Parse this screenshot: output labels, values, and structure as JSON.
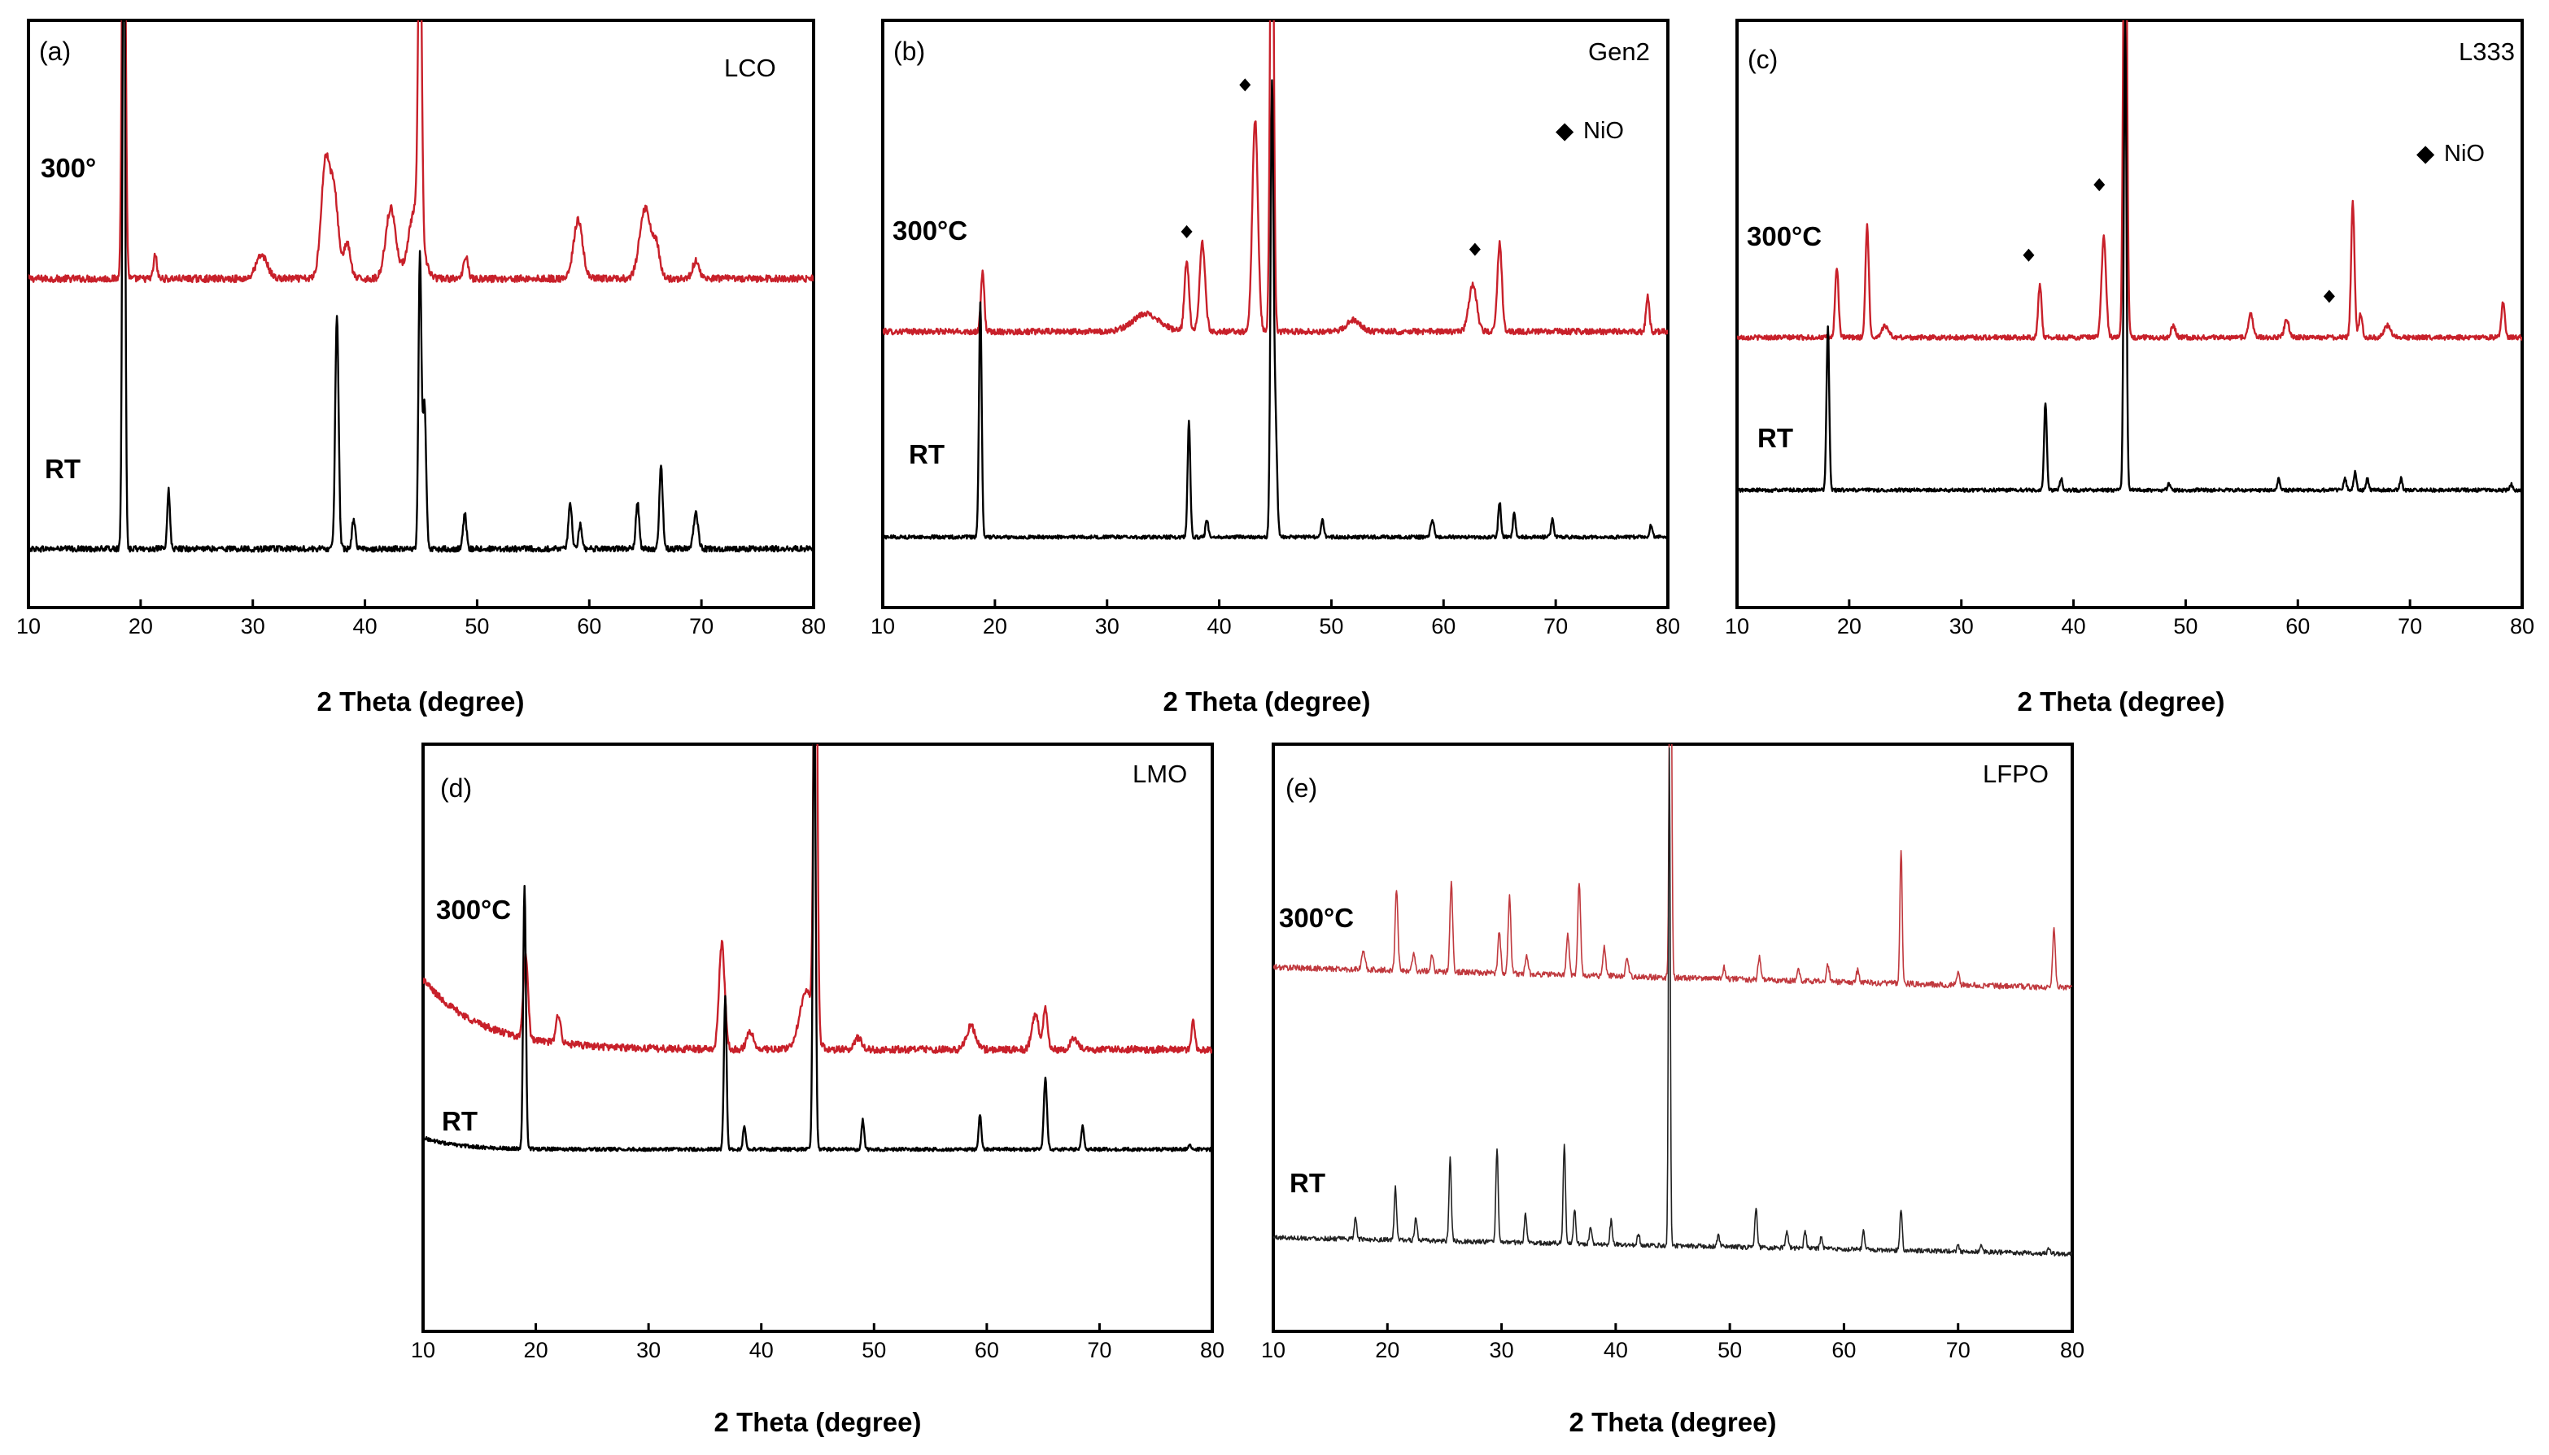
{
  "figure": {
    "description_text": ""
  },
  "colors": {
    "heated": "#c8202a",
    "room_temp": "#000000",
    "heated_lfpo": "#c0393e",
    "room_temp_lfpo": "#222222"
  },
  "chart_data": [
    {
      "panel_label": "(a)",
      "sample": "LCO",
      "type": "line",
      "xlabel": "2 Theta (degree)",
      "xlim": [
        10,
        80
      ],
      "xticks": [
        10,
        20,
        30,
        40,
        50,
        60,
        70,
        80
      ],
      "legend": null,
      "series": [
        {
          "name": "300°",
          "label": "300°",
          "color": "#c8202a",
          "baseline": 0.56,
          "noise": 0.006,
          "slope": 0.0,
          "peaks": [
            [
              18.5,
              0.9,
              0.15
            ],
            [
              21.3,
              0.04,
              0.15
            ],
            [
              30.8,
              0.04,
              0.5
            ],
            [
              36.5,
              0.2,
              0.4
            ],
            [
              37.3,
              0.13,
              0.35
            ],
            [
              38.4,
              0.06,
              0.3
            ],
            [
              42.3,
              0.12,
              0.45
            ],
            [
              44.9,
              0.6,
              0.15
            ],
            [
              44.5,
              0.12,
              0.6
            ],
            [
              49.0,
              0.04,
              0.2
            ],
            [
              59.0,
              0.1,
              0.4
            ],
            [
              65.0,
              0.12,
              0.5
            ],
            [
              66.0,
              0.05,
              0.3
            ],
            [
              69.5,
              0.03,
              0.3
            ]
          ]
        },
        {
          "name": "RT",
          "label": "RT",
          "color": "#000000",
          "baseline": 0.1,
          "noise": 0.005,
          "slope": 0.0,
          "peaks": [
            [
              18.5,
              1.25,
              0.12
            ],
            [
              22.5,
              0.1,
              0.12
            ],
            [
              37.5,
              0.4,
              0.15
            ],
            [
              39.0,
              0.05,
              0.15
            ],
            [
              44.9,
              0.5,
              0.13
            ],
            [
              45.3,
              0.25,
              0.15
            ],
            [
              48.9,
              0.06,
              0.15
            ],
            [
              58.3,
              0.08,
              0.15
            ],
            [
              59.2,
              0.04,
              0.15
            ],
            [
              64.3,
              0.08,
              0.15
            ],
            [
              66.4,
              0.14,
              0.15
            ],
            [
              69.5,
              0.06,
              0.2
            ]
          ]
        }
      ]
    },
    {
      "panel_label": "(b)",
      "sample": "Gen2",
      "type": "line",
      "xlabel": "2 Theta (degree)",
      "xlim": [
        10,
        80
      ],
      "xticks": [
        10,
        20,
        30,
        40,
        50,
        60,
        70,
        80
      ],
      "legend": {
        "symbol": "◆",
        "text": "NiO",
        "position": "top-right"
      },
      "markers": [
        {
          "x": 37.1,
          "y": 0.64
        },
        {
          "x": 42.3,
          "y": 0.89
        },
        {
          "x": 62.8,
          "y": 0.61
        }
      ],
      "series": [
        {
          "name": "300°C",
          "label": "300°C",
          "color": "#c8202a",
          "baseline": 0.47,
          "noise": 0.005,
          "slope": 0.0,
          "peaks": [
            [
              18.9,
              0.1,
              0.15
            ],
            [
              33.5,
              0.03,
              1.2
            ],
            [
              37.1,
              0.12,
              0.2
            ],
            [
              38.5,
              0.15,
              0.25
            ],
            [
              43.2,
              0.36,
              0.25
            ],
            [
              44.7,
              1.0,
              0.15
            ],
            [
              52.0,
              0.02,
              0.6
            ],
            [
              62.6,
              0.08,
              0.35
            ],
            [
              65.0,
              0.15,
              0.2
            ],
            [
              78.2,
              0.06,
              0.15
            ]
          ]
        },
        {
          "name": "RT",
          "label": "RT",
          "color": "#000000",
          "baseline": 0.12,
          "noise": 0.003,
          "slope": 0.0,
          "peaks": [
            [
              18.7,
              0.4,
              0.12
            ],
            [
              37.3,
              0.2,
              0.12
            ],
            [
              38.9,
              0.03,
              0.12
            ],
            [
              44.7,
              0.75,
              0.13
            ],
            [
              45.0,
              0.2,
              0.15
            ],
            [
              49.2,
              0.03,
              0.12
            ],
            [
              59.0,
              0.03,
              0.15
            ],
            [
              65.0,
              0.06,
              0.12
            ],
            [
              66.3,
              0.04,
              0.12
            ],
            [
              69.7,
              0.03,
              0.12
            ],
            [
              78.5,
              0.02,
              0.12
            ]
          ]
        }
      ]
    },
    {
      "panel_label": "(c)",
      "sample": "L333",
      "type": "line",
      "xlabel": "2 Theta (degree)",
      "xlim": [
        10,
        80
      ],
      "xticks": [
        10,
        20,
        30,
        40,
        50,
        60,
        70,
        80
      ],
      "legend": {
        "symbol": "◆",
        "text": "NiO",
        "position": "top-right"
      },
      "markers": [
        {
          "x": 36.0,
          "y": 0.6
        },
        {
          "x": 42.3,
          "y": 0.72
        },
        {
          "x": 62.8,
          "y": 0.53
        }
      ],
      "series": [
        {
          "name": "300°C",
          "label": "300°C",
          "color": "#c8202a",
          "baseline": 0.46,
          "noise": 0.004,
          "slope": 0.0,
          "peaks": [
            [
              18.9,
              0.12,
              0.15
            ],
            [
              21.6,
              0.19,
              0.15
            ],
            [
              23.2,
              0.02,
              0.3
            ],
            [
              37.0,
              0.09,
              0.15
            ],
            [
              42.7,
              0.17,
              0.2
            ],
            [
              44.6,
              1.0,
              0.15
            ],
            [
              48.9,
              0.02,
              0.2
            ],
            [
              55.8,
              0.04,
              0.2
            ],
            [
              59.0,
              0.03,
              0.2
            ],
            [
              64.9,
              0.23,
              0.15
            ],
            [
              65.6,
              0.04,
              0.15
            ],
            [
              68.0,
              0.02,
              0.3
            ],
            [
              78.3,
              0.06,
              0.15
            ]
          ]
        },
        {
          "name": "RT",
          "label": "RT",
          "color": "#000000",
          "baseline": 0.2,
          "noise": 0.003,
          "slope": 0.0,
          "peaks": [
            [
              18.1,
              0.28,
              0.12
            ],
            [
              37.5,
              0.15,
              0.12
            ],
            [
              38.9,
              0.02,
              0.12
            ],
            [
              44.6,
              0.8,
              0.12
            ],
            [
              48.5,
              0.01,
              0.12
            ],
            [
              58.3,
              0.02,
              0.12
            ],
            [
              64.2,
              0.02,
              0.12
            ],
            [
              65.1,
              0.03,
              0.12
            ],
            [
              66.2,
              0.02,
              0.12
            ],
            [
              69.2,
              0.02,
              0.12
            ],
            [
              79.0,
              0.01,
              0.12
            ]
          ]
        }
      ]
    },
    {
      "panel_label": "(d)",
      "sample": "LMO",
      "type": "line",
      "xlabel": "2 Theta (degree)",
      "xlim": [
        10,
        80
      ],
      "xticks": [
        10,
        20,
        30,
        40,
        50,
        60,
        70,
        80
      ],
      "legend": null,
      "series": [
        {
          "name": "300°C",
          "label": "300°C",
          "color": "#c8202a",
          "baseline": 0.48,
          "noise": 0.006,
          "slope": 0.0,
          "decay": [
            0.12,
            5.0
          ],
          "peaks": [
            [
              19.1,
              0.14,
              0.2
            ],
            [
              22.0,
              0.05,
              0.2
            ],
            [
              36.5,
              0.18,
              0.25
            ],
            [
              39.0,
              0.03,
              0.3
            ],
            [
              44.0,
              0.1,
              0.6
            ],
            [
              44.8,
              1.0,
              0.15
            ],
            [
              48.6,
              0.02,
              0.3
            ],
            [
              58.6,
              0.04,
              0.4
            ],
            [
              64.3,
              0.06,
              0.3
            ],
            [
              65.2,
              0.07,
              0.2
            ],
            [
              67.7,
              0.02,
              0.3
            ],
            [
              78.3,
              0.05,
              0.15
            ]
          ]
        },
        {
          "name": "RT",
          "label": "RT",
          "color": "#000000",
          "baseline": 0.31,
          "noise": 0.003,
          "slope": 0.0,
          "decay": [
            0.02,
            3.0
          ],
          "peaks": [
            [
              19.0,
              0.45,
              0.12
            ],
            [
              36.8,
              0.26,
              0.12
            ],
            [
              38.5,
              0.04,
              0.12
            ],
            [
              44.7,
              0.82,
              0.12
            ],
            [
              49.0,
              0.05,
              0.12
            ],
            [
              59.4,
              0.06,
              0.12
            ],
            [
              65.2,
              0.12,
              0.14
            ],
            [
              68.5,
              0.04,
              0.12
            ],
            [
              78.0,
              0.01,
              0.12
            ]
          ]
        }
      ]
    },
    {
      "panel_label": "(e)",
      "sample": "LFPO",
      "type": "line",
      "xlabel": "2 Theta (degree)",
      "xlim": [
        10,
        80
      ],
      "xticks": [
        10,
        20,
        30,
        40,
        50,
        60,
        70,
        80
      ],
      "legend": null,
      "series": [
        {
          "name": "300°C",
          "label": "300°C",
          "color": "#c0393e",
          "baseline": 0.62,
          "noise": 0.005,
          "slope": -0.0005,
          "peaks": [
            [
              17.9,
              0.03,
              0.15
            ],
            [
              20.8,
              0.14,
              0.12
            ],
            [
              22.3,
              0.03,
              0.12
            ],
            [
              23.9,
              0.03,
              0.12
            ],
            [
              25.6,
              0.15,
              0.12
            ],
            [
              29.8,
              0.07,
              0.12
            ],
            [
              30.7,
              0.13,
              0.12
            ],
            [
              32.2,
              0.03,
              0.12
            ],
            [
              35.8,
              0.07,
              0.12
            ],
            [
              36.8,
              0.16,
              0.12
            ],
            [
              39.0,
              0.05,
              0.12
            ],
            [
              41.0,
              0.03,
              0.12
            ],
            [
              44.8,
              0.8,
              0.1
            ],
            [
              49.5,
              0.02,
              0.12
            ],
            [
              52.6,
              0.04,
              0.12
            ],
            [
              56.0,
              0.02,
              0.12
            ],
            [
              58.6,
              0.03,
              0.12
            ],
            [
              61.2,
              0.02,
              0.12
            ],
            [
              65.0,
              0.23,
              0.1
            ],
            [
              70.0,
              0.02,
              0.12
            ],
            [
              78.4,
              0.1,
              0.12
            ]
          ]
        },
        {
          "name": "RT",
          "label": "RT",
          "color": "#222222",
          "baseline": 0.16,
          "noise": 0.004,
          "slope": -0.0004,
          "peaks": [
            [
              17.2,
              0.04,
              0.1
            ],
            [
              20.7,
              0.09,
              0.1
            ],
            [
              22.5,
              0.04,
              0.1
            ],
            [
              25.5,
              0.14,
              0.1
            ],
            [
              29.6,
              0.16,
              0.1
            ],
            [
              32.1,
              0.05,
              0.1
            ],
            [
              35.5,
              0.17,
              0.1
            ],
            [
              36.4,
              0.06,
              0.1
            ],
            [
              37.8,
              0.03,
              0.1
            ],
            [
              39.6,
              0.04,
              0.1
            ],
            [
              42.0,
              0.02,
              0.1
            ],
            [
              44.7,
              0.85,
              0.08
            ],
            [
              49.0,
              0.02,
              0.1
            ],
            [
              52.3,
              0.07,
              0.1
            ],
            [
              55.0,
              0.03,
              0.1
            ],
            [
              56.6,
              0.03,
              0.1
            ],
            [
              58.0,
              0.02,
              0.1
            ],
            [
              61.7,
              0.03,
              0.1
            ],
            [
              65.0,
              0.07,
              0.1
            ],
            [
              70.0,
              0.01,
              0.1
            ],
            [
              72.0,
              0.01,
              0.1
            ],
            [
              78.0,
              0.01,
              0.1
            ]
          ]
        }
      ]
    }
  ]
}
